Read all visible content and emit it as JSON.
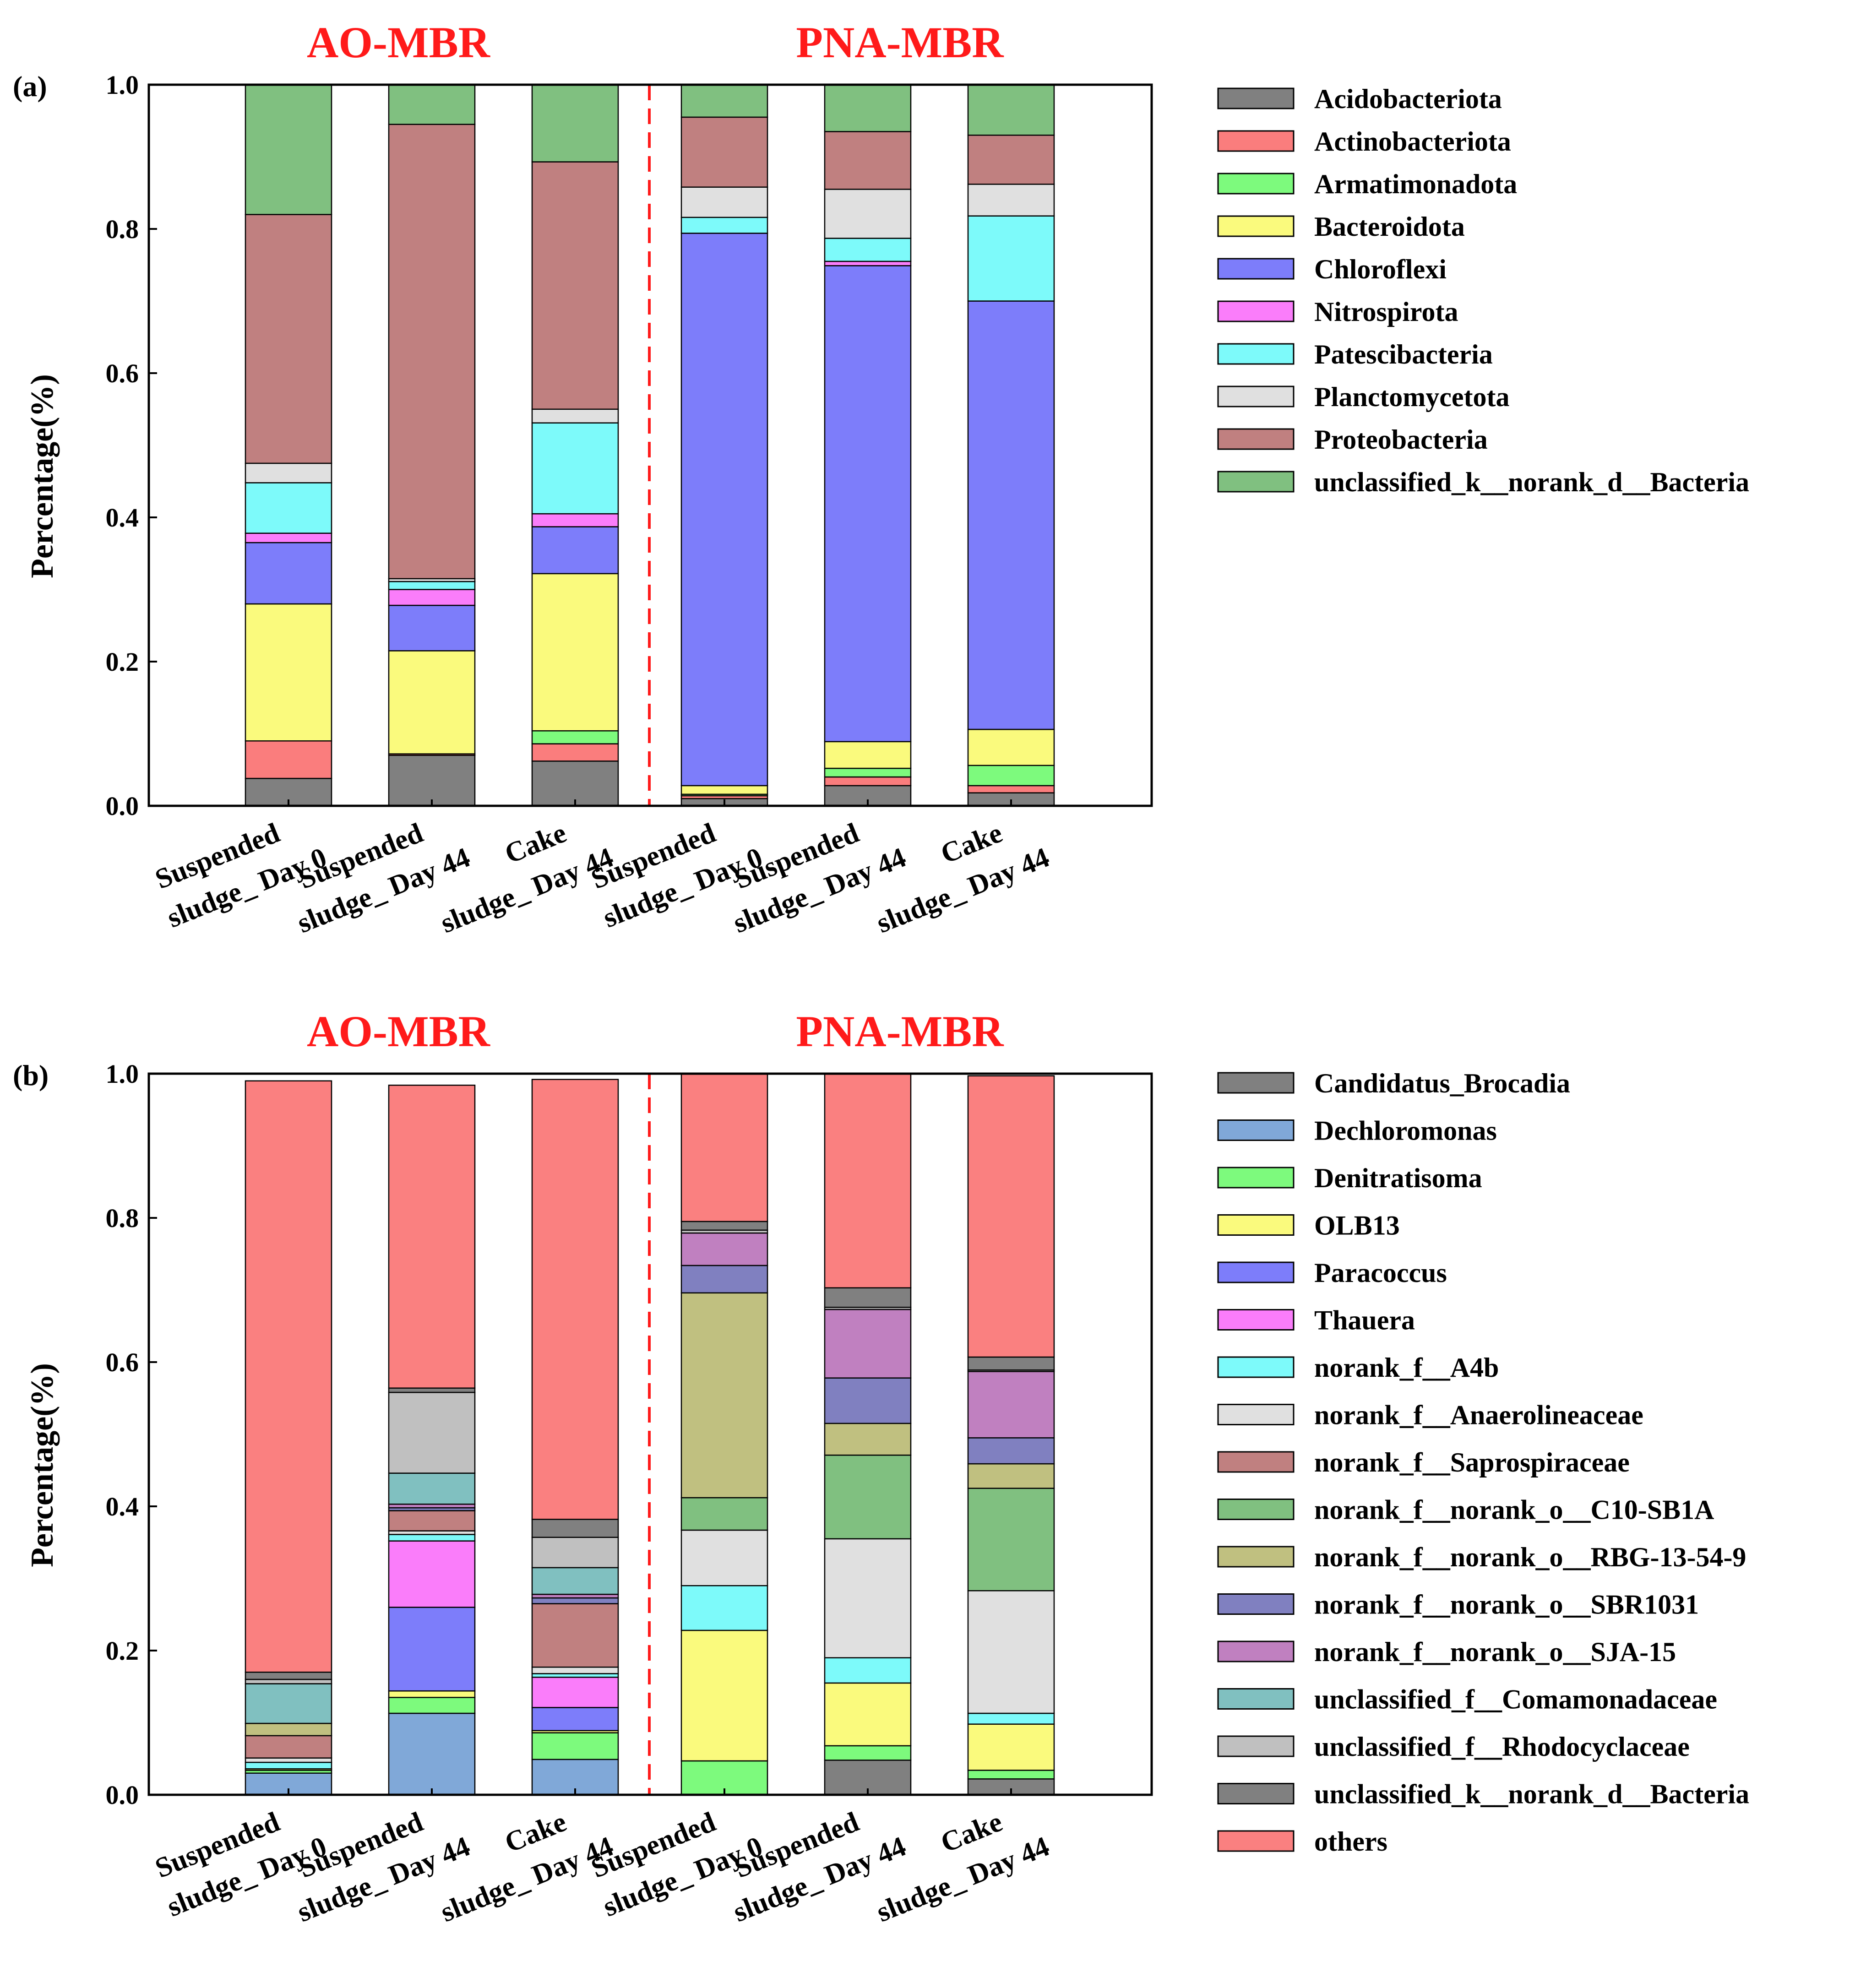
{
  "chart_data": [
    {
      "type": "bar",
      "stacked": true,
      "panel_label": "(a)",
      "ylabel": "Percentage(%)",
      "ylim": [
        0,
        1.0
      ],
      "yticks": [
        "0.0",
        "0.2",
        "0.4",
        "0.6",
        "0.8",
        "1.0"
      ],
      "groups": [
        "AO-MBR",
        "PNA-MBR"
      ],
      "categories": [
        {
          "line1": "Suspended",
          "line2": "sludge_ Day 0"
        },
        {
          "line1": "Suspended",
          "line2": "sludge_ Day 44"
        },
        {
          "line1": "Cake",
          "line2": "sludge_ Day 44"
        },
        {
          "line1": "Suspended",
          "line2": "sludge_ Day 0"
        },
        {
          "line1": "Suspended",
          "line2": "sludge_ Day 44"
        },
        {
          "line1": "Cake",
          "line2": "sludge_ Day 44"
        }
      ],
      "series": [
        {
          "name": "Acidobacteriota",
          "color": "#808080",
          "values": [
            0.038,
            0.07,
            0.062,
            0.01,
            0.028,
            0.018
          ]
        },
        {
          "name": "Actinobacteriota",
          "color": "#fa7d7d",
          "values": [
            0.052,
            0.002,
            0.024,
            0.004,
            0.012,
            0.01
          ]
        },
        {
          "name": "Armatimonadota",
          "color": "#7dfa7d",
          "values": [
            0.0,
            0.0,
            0.018,
            0.002,
            0.012,
            0.028
          ]
        },
        {
          "name": "Bacteroidota",
          "color": "#fafa7d",
          "values": [
            0.19,
            0.143,
            0.218,
            0.012,
            0.037,
            0.05
          ]
        },
        {
          "name": "Chloroflexi",
          "color": "#7d7dfa",
          "values": [
            0.085,
            0.063,
            0.065,
            0.766,
            0.66,
            0.594
          ]
        },
        {
          "name": "Nitrospirota",
          "color": "#fa7dfa",
          "values": [
            0.013,
            0.022,
            0.018,
            0.0,
            0.006,
            0.0
          ]
        },
        {
          "name": "Patescibacteria",
          "color": "#7dfafa",
          "values": [
            0.07,
            0.011,
            0.126,
            0.022,
            0.032,
            0.118
          ]
        },
        {
          "name": "Planctomycetota",
          "color": "#e0e0e0",
          "values": [
            0.027,
            0.004,
            0.019,
            0.042,
            0.068,
            0.044
          ]
        },
        {
          "name": "Proteobacteria",
          "color": "#c08080",
          "values": [
            0.345,
            0.63,
            0.343,
            0.097,
            0.08,
            0.068
          ]
        },
        {
          "name": "unclassified_k__norank_d__Bacteria",
          "color": "#80c080",
          "values": [
            0.18,
            0.055,
            0.107,
            0.045,
            0.065,
            0.07
          ]
        }
      ]
    },
    {
      "type": "bar",
      "stacked": true,
      "panel_label": "(b)",
      "ylabel": "Percentage(%)",
      "ylim": [
        0,
        1.0
      ],
      "yticks": [
        "0.0",
        "0.2",
        "0.4",
        "0.6",
        "0.8",
        "1.0"
      ],
      "groups": [
        "AO-MBR",
        "PNA-MBR"
      ],
      "categories": [
        {
          "line1": "Suspended",
          "line2": "sludge_ Day 0"
        },
        {
          "line1": "Suspended",
          "line2": "sludge_ Day 44"
        },
        {
          "line1": "Cake",
          "line2": "sludge_ Day 44"
        },
        {
          "line1": "Suspended",
          "line2": "sludge_ Day 0"
        },
        {
          "line1": "Suspended",
          "line2": "sludge_ Day 44"
        },
        {
          "line1": "Cake",
          "line2": "sludge_ Day 44"
        }
      ],
      "series": [
        {
          "name": "Candidatus_Brocadia",
          "color": "#808080",
          "values": [
            0.0,
            0.0,
            0.0,
            0.0,
            0.048,
            0.022
          ]
        },
        {
          "name": "Dechloromonas",
          "color": "#80a8d8",
          "values": [
            0.03,
            0.113,
            0.049,
            0.0,
            0.0,
            0.0
          ]
        },
        {
          "name": "Denitratisoma",
          "color": "#7dfa7d",
          "values": [
            0.004,
            0.022,
            0.037,
            0.047,
            0.02,
            0.012
          ]
        },
        {
          "name": "OLB13",
          "color": "#fafa7d",
          "values": [
            0.002,
            0.009,
            0.003,
            0.181,
            0.087,
            0.064
          ]
        },
        {
          "name": "Paracoccus",
          "color": "#7d7dfa",
          "values": [
            0.0,
            0.116,
            0.032,
            0.0,
            0.0,
            0.0
          ]
        },
        {
          "name": "Thauera",
          "color": "#fa7dfa",
          "values": [
            0.0,
            0.092,
            0.042,
            0.0,
            0.0,
            0.0
          ]
        },
        {
          "name": "norank_f__A4b",
          "color": "#7dfafa",
          "values": [
            0.009,
            0.009,
            0.005,
            0.062,
            0.035,
            0.015
          ]
        },
        {
          "name": "norank_f__Anaerolineaceae",
          "color": "#e0e0e0",
          "values": [
            0.006,
            0.005,
            0.009,
            0.077,
            0.165,
            0.17
          ]
        },
        {
          "name": "norank_f__Saprospiraceae",
          "color": "#c08080",
          "values": [
            0.031,
            0.028,
            0.088,
            0.0,
            0.0,
            0.0
          ]
        },
        {
          "name": "norank_f__norank_o__C10-SB1A",
          "color": "#80c080",
          "values": [
            0.0,
            0.0,
            0.0,
            0.045,
            0.116,
            0.142
          ]
        },
        {
          "name": "norank_f__norank_o__RBG-13-54-9",
          "color": "#c0c080",
          "values": [
            0.017,
            0.0,
            0.0,
            0.284,
            0.044,
            0.034
          ]
        },
        {
          "name": "norank_f__norank_o__SBR1031",
          "color": "#8080c0",
          "values": [
            0.0,
            0.004,
            0.008,
            0.038,
            0.063,
            0.036
          ]
        },
        {
          "name": "norank_f__norank_o__SJA-15",
          "color": "#c080c0",
          "values": [
            0.0,
            0.005,
            0.005,
            0.045,
            0.095,
            0.092
          ]
        },
        {
          "name": "unclassified_f__Comamonadaceae",
          "color": "#80c0c0",
          "values": [
            0.055,
            0.043,
            0.037,
            0.0,
            0.0,
            0.0
          ]
        },
        {
          "name": "unclassified_f__Rhodocyclaceae",
          "color": "#c0c0c0",
          "values": [
            0.006,
            0.112,
            0.042,
            0.004,
            0.003,
            0.002
          ]
        },
        {
          "name": "unclassified_k__norank_d__Bacteria",
          "color": "#808080",
          "values": [
            0.01,
            0.006,
            0.025,
            0.012,
            0.027,
            0.018
          ]
        },
        {
          "name": "others",
          "color": "#fa8080",
          "values": [
            0.82,
            0.42,
            0.61,
            0.205,
            0.297,
            0.39
          ]
        }
      ]
    }
  ]
}
